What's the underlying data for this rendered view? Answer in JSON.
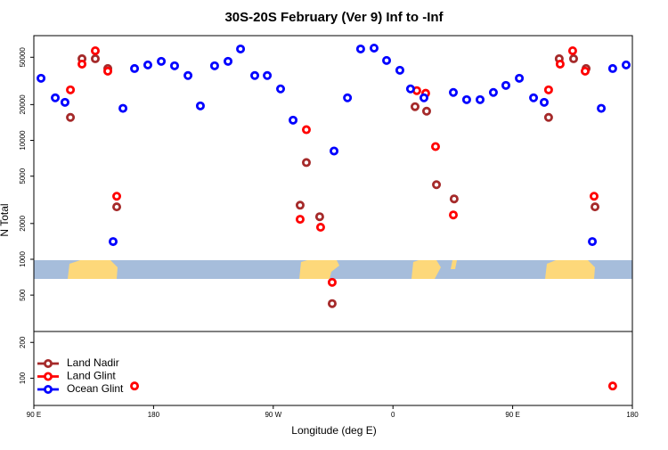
{
  "chart_data": {
    "type": "scatter",
    "title": "30S-20S February (Ver 9)   Inf to -Inf",
    "x_label": "Longitude (deg E)",
    "y_label": "N Total",
    "log_y": true,
    "xlim": [
      90,
      540
    ],
    "ylim": [
      59,
      76000
    ],
    "xticks": [
      {
        "value": 90,
        "label": "90 E"
      },
      {
        "value": 180,
        "label": "180"
      },
      {
        "value": 270,
        "label": "90 W"
      },
      {
        "value": 360,
        "label": "0"
      },
      {
        "value": 450,
        "label": "90 E"
      },
      {
        "value": 540,
        "label": "180"
      }
    ],
    "yticks": [
      100,
      200,
      500,
      1000,
      2000,
      5000,
      10000,
      20000,
      50000
    ],
    "legend": "bottom-left",
    "series": [
      {
        "name": "Land Nadir",
        "color": "#a52a2a",
        "x": [
          117.5,
          126.2,
          136.2,
          145.6,
          152.3,
          290.2,
          294.9,
          304.9,
          314.3,
          376.6,
          385.3,
          392.7,
          406,
          477,
          485,
          495.8,
          505.2,
          511.9
        ],
        "values": [
          15600,
          48600,
          48600,
          40200,
          2760,
          2850,
          6510,
          2280,
          424,
          19200,
          17600,
          4240,
          3220,
          15600,
          48600,
          48600,
          40200,
          2760
        ]
      },
      {
        "name": "Land Glint",
        "color": "#ff0000",
        "x": [
          117.5,
          126.2,
          136.2,
          145.6,
          152.3,
          165.7,
          294.9,
          290.2,
          305.6,
          314.3,
          377.9,
          384.6,
          392,
          405.4,
          477,
          485.7,
          495.1,
          504.5,
          511.2,
          525.2
        ],
        "values": [
          26600,
          43800,
          56700,
          38200,
          3390,
          86,
          12300,
          2170,
          1860,
          640,
          26200,
          24900,
          8870,
          2360,
          26600,
          43800,
          56700,
          38200,
          3390,
          86
        ]
      },
      {
        "name": "Ocean Glint",
        "color": "#0000ff",
        "x": [
          95.4,
          106.1,
          113.4,
          149.6,
          157,
          165.7,
          175.7,
          185.8,
          195.8,
          205.9,
          215.2,
          225.9,
          236,
          245.4,
          256.1,
          265.5,
          275.5,
          284.9,
          315.7,
          325.8,
          335.7,
          345.8,
          355.2,
          365.2,
          373.2,
          383.3,
          405.4,
          415.4,
          425.5,
          435.5,
          444.9,
          455,
          465.7,
          473.7,
          509.9,
          516.6,
          525.2,
          535.3
        ],
        "values": [
          33300,
          22800,
          20900,
          1410,
          18600,
          40200,
          43100,
          46200,
          42400,
          35100,
          19500,
          42400,
          46200,
          58700,
          35100,
          35100,
          27100,
          14800,
          8140,
          22800,
          58700,
          59700,
          47000,
          38900,
          27100,
          22800,
          25300,
          22000,
          22000,
          25300,
          29000,
          33300,
          22800,
          20900,
          1410,
          18600,
          40200,
          43100
        ]
      }
    ]
  }
}
